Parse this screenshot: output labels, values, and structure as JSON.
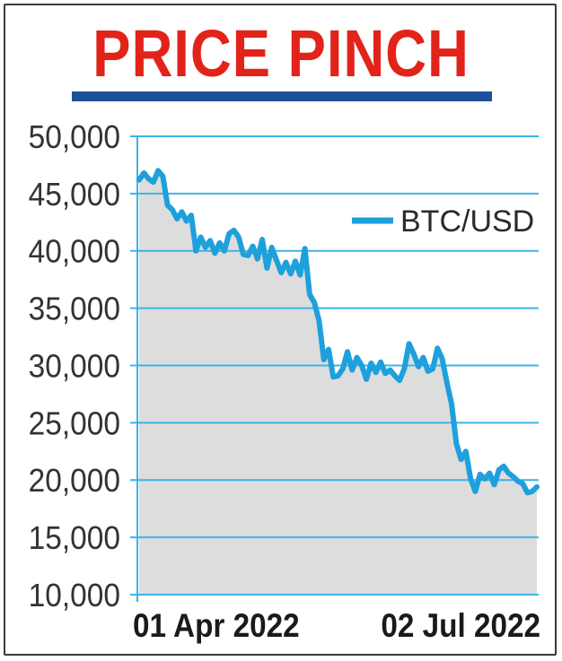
{
  "title": "PRICE PINCH",
  "colors": {
    "title": "#e2231a",
    "title_rule": "#1e4f9c",
    "line": "#1ea0dc",
    "area": "#dddddd",
    "grid": "#3cb4e6"
  },
  "chart_data": {
    "type": "area",
    "title": "PRICE PINCH",
    "series": [
      {
        "name": "BTC/USD",
        "values": [
          46200,
          46800,
          46300,
          46000,
          47000,
          46500,
          44000,
          43600,
          42800,
          43400,
          42600,
          43100,
          40000,
          41200,
          40300,
          40900,
          39800,
          40700,
          40000,
          41500,
          41800,
          41200,
          39700,
          39600,
          40400,
          39300,
          41000,
          38500,
          40300,
          39200,
          38100,
          39000,
          38000,
          39100,
          37900,
          40200,
          36200,
          35500,
          33900,
          30500,
          31400,
          29000,
          29100,
          29700,
          31200,
          29600,
          30700,
          30000,
          28800,
          30200,
          29400,
          30300,
          29300,
          29600,
          29100,
          28700,
          29700,
          31900,
          31000,
          29900,
          30700,
          29500,
          29700,
          31500,
          30600,
          28500,
          26600,
          23200,
          21800,
          22500,
          20100,
          19000,
          20500,
          20100,
          20600,
          19600,
          20900,
          21200,
          20600,
          20300,
          19900,
          19700,
          18900,
          19000,
          19400
        ]
      }
    ],
    "x_start": "01 Apr 2022",
    "x_end": "02 Jul 2022",
    "x_tick_labels": [
      "01 Apr 2022",
      "02 Jul 2022"
    ],
    "y_ticks": [
      10000,
      15000,
      20000,
      25000,
      30000,
      35000,
      40000,
      45000,
      50000
    ],
    "y_tick_labels": [
      "10,000",
      "15,000",
      "20,000",
      "25,000",
      "30,000",
      "35,000",
      "40,000",
      "45,000",
      "50,000"
    ],
    "ylim": [
      10000,
      50000
    ],
    "grid": true,
    "legend_position": "top-right",
    "xlabel": "",
    "ylabel": ""
  }
}
